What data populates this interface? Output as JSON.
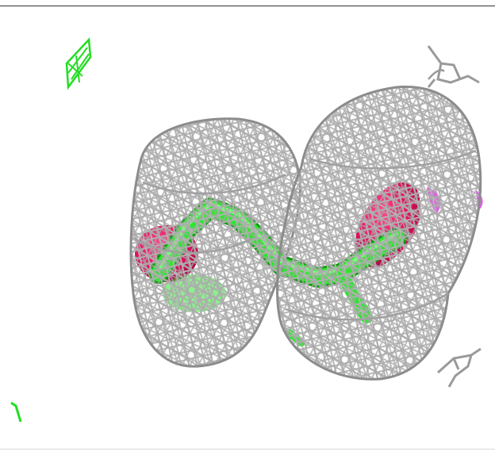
{
  "scene": {
    "background": "#ffffff",
    "colors": {
      "mesh": "#b4b4b4",
      "mesh_dark": "#8c8c8c",
      "stick": "#2ee62e",
      "stick_shadow": "#1aa81a",
      "pink": "#e0105e",
      "pink_dark": "#a0083f",
      "magenta": "#e060e8",
      "fragment_green": "#22dd22"
    },
    "objects": [
      "density-mesh-left-lobe",
      "density-mesh-right-lobe",
      "ligand-stick-model",
      "pink-surface-left",
      "pink-surface-right",
      "magenta-surface-edge",
      "green-mesh-fragment-top-left",
      "green-mesh-fragment-bottom-left",
      "gray-stick-fragment-top-right",
      "gray-stick-fragment-bottom-right"
    ]
  }
}
